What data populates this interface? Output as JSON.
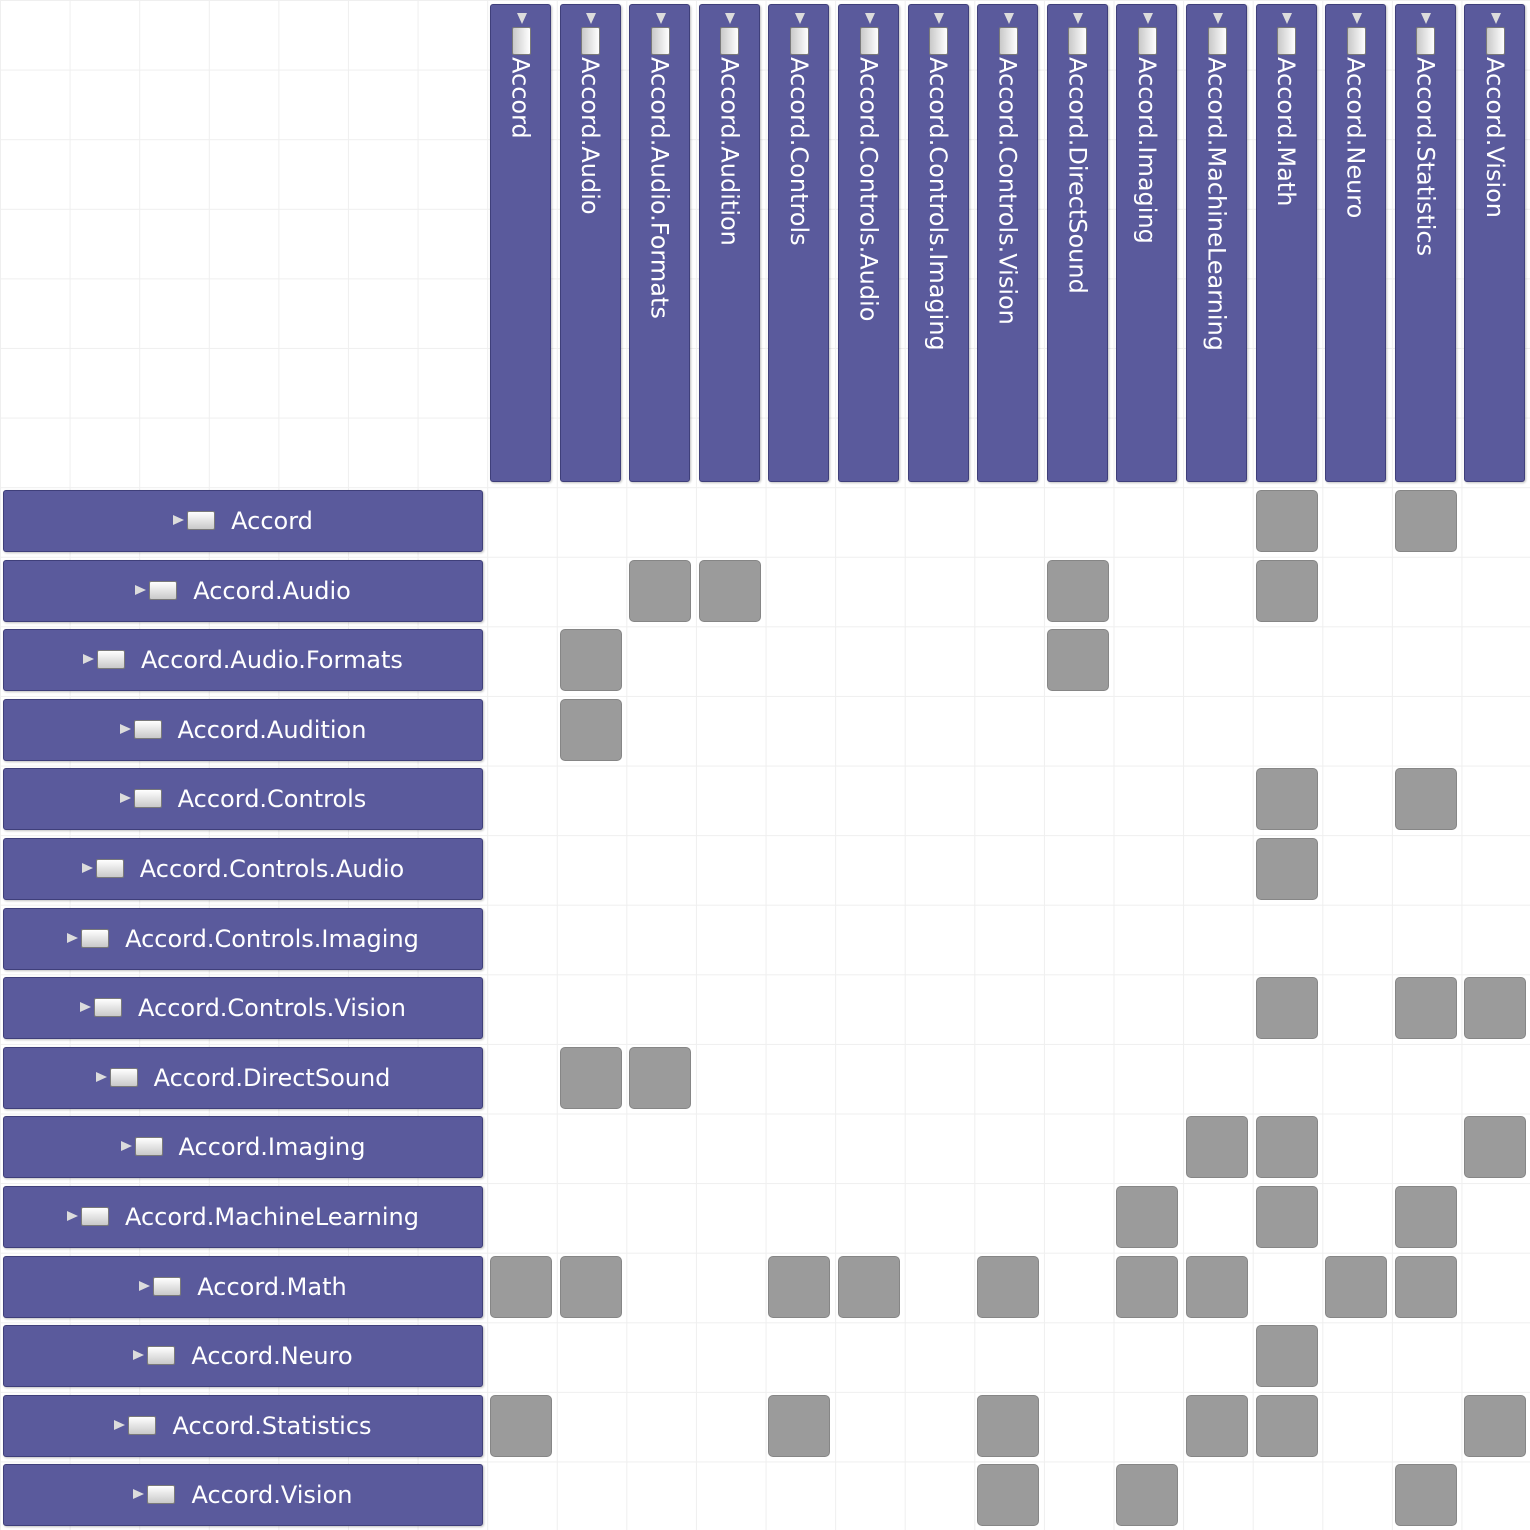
{
  "namespaces": [
    "Accord",
    "Accord.Audio",
    "Accord.Audio.Formats",
    "Accord.Audition",
    "Accord.Controls",
    "Accord.Controls.Audio",
    "Accord.Controls.Imaging",
    "Accord.Controls.Vision",
    "Accord.DirectSound",
    "Accord.Imaging",
    "Accord.MachineLearning",
    "Accord.Math",
    "Accord.Neuro",
    "Accord.Statistics",
    "Accord.Vision"
  ],
  "icon": "namespace-icon",
  "colors": {
    "header_fill": "#5a5a9c",
    "cell_fill": "#9b9b9b",
    "grid_line": "#efefef"
  },
  "dependencies": [
    [
      "Accord",
      "Accord.Math"
    ],
    [
      "Accord",
      "Accord.Statistics"
    ],
    [
      "Accord.Audio",
      "Accord.Audio.Formats"
    ],
    [
      "Accord.Audio",
      "Accord.Audition"
    ],
    [
      "Accord.Audio",
      "Accord.DirectSound"
    ],
    [
      "Accord.Audio",
      "Accord.Math"
    ],
    [
      "Accord.Audio.Formats",
      "Accord.Audio"
    ],
    [
      "Accord.Audio.Formats",
      "Accord.DirectSound"
    ],
    [
      "Accord.Audition",
      "Accord.Audio"
    ],
    [
      "Accord.Controls",
      "Accord.Math"
    ],
    [
      "Accord.Controls",
      "Accord.Statistics"
    ],
    [
      "Accord.Controls.Audio",
      "Accord.Math"
    ],
    [
      "Accord.Controls.Vision",
      "Accord.Math"
    ],
    [
      "Accord.Controls.Vision",
      "Accord.Statistics"
    ],
    [
      "Accord.Controls.Vision",
      "Accord.Vision"
    ],
    [
      "Accord.DirectSound",
      "Accord.Audio"
    ],
    [
      "Accord.DirectSound",
      "Accord.Audio.Formats"
    ],
    [
      "Accord.Imaging",
      "Accord.MachineLearning"
    ],
    [
      "Accord.Imaging",
      "Accord.Math"
    ],
    [
      "Accord.Imaging",
      "Accord.Vision"
    ],
    [
      "Accord.MachineLearning",
      "Accord.Imaging"
    ],
    [
      "Accord.MachineLearning",
      "Accord.Math"
    ],
    [
      "Accord.MachineLearning",
      "Accord.Statistics"
    ],
    [
      "Accord.Math",
      "Accord"
    ],
    [
      "Accord.Math",
      "Accord.Audio"
    ],
    [
      "Accord.Math",
      "Accord.Controls"
    ],
    [
      "Accord.Math",
      "Accord.Controls.Audio"
    ],
    [
      "Accord.Math",
      "Accord.Controls.Vision"
    ],
    [
      "Accord.Math",
      "Accord.Imaging"
    ],
    [
      "Accord.Math",
      "Accord.MachineLearning"
    ],
    [
      "Accord.Math",
      "Accord.Neuro"
    ],
    [
      "Accord.Math",
      "Accord.Statistics"
    ],
    [
      "Accord.Neuro",
      "Accord.Math"
    ],
    [
      "Accord.Statistics",
      "Accord"
    ],
    [
      "Accord.Statistics",
      "Accord.Controls"
    ],
    [
      "Accord.Statistics",
      "Accord.Controls.Vision"
    ],
    [
      "Accord.Statistics",
      "Accord.MachineLearning"
    ],
    [
      "Accord.Statistics",
      "Accord.Math"
    ],
    [
      "Accord.Statistics",
      "Accord.Vision"
    ],
    [
      "Accord.Vision",
      "Accord.Controls.Vision"
    ],
    [
      "Accord.Vision",
      "Accord.Imaging"
    ],
    [
      "Accord.Vision",
      "Accord.Statistics"
    ]
  ]
}
